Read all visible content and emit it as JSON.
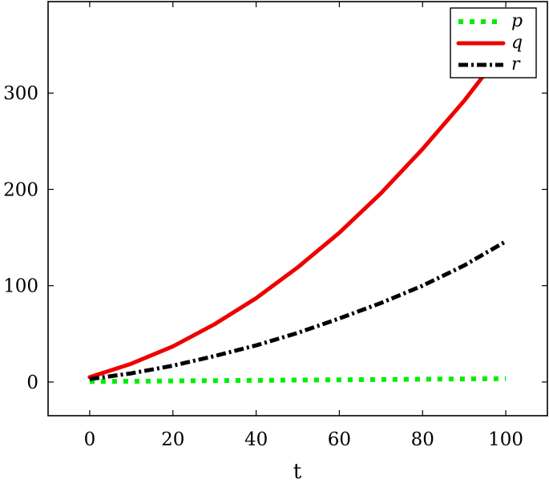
{
  "chart_data": {
    "type": "line",
    "title": "",
    "xlabel": "t",
    "ylabel": "",
    "xlim": [
      -10,
      110
    ],
    "ylim": [
      -35,
      395
    ],
    "xticks": [
      0,
      20,
      40,
      60,
      80,
      100
    ],
    "yticks": [
      0,
      100,
      200,
      300
    ],
    "grid": false,
    "legend_position": "top-right",
    "series": [
      {
        "name": "p",
        "color": "#00ee00",
        "style": "dotted",
        "x": [
          0,
          10,
          20,
          30,
          40,
          50,
          60,
          70,
          80,
          90,
          100
        ],
        "y": [
          0.5,
          0.8,
          1.1,
          1.4,
          1.7,
          2.0,
          2.3,
          2.6,
          2.9,
          3.2,
          3.5
        ]
      },
      {
        "name": "q",
        "color": "#ee0000",
        "style": "solid",
        "x": [
          0,
          10,
          20,
          30,
          40,
          50,
          60,
          70,
          80,
          90,
          95
        ],
        "y": [
          5,
          19,
          37,
          60,
          87,
          119,
          155,
          196,
          242,
          292,
          320
        ]
      },
      {
        "name": "r",
        "color": "#000000",
        "style": "dashdot",
        "x": [
          0,
          10,
          20,
          30,
          40,
          50,
          60,
          70,
          80,
          90,
          100
        ],
        "y": [
          3,
          9,
          17,
          27,
          38,
          51,
          66,
          82,
          100,
          121,
          146
        ]
      }
    ]
  }
}
